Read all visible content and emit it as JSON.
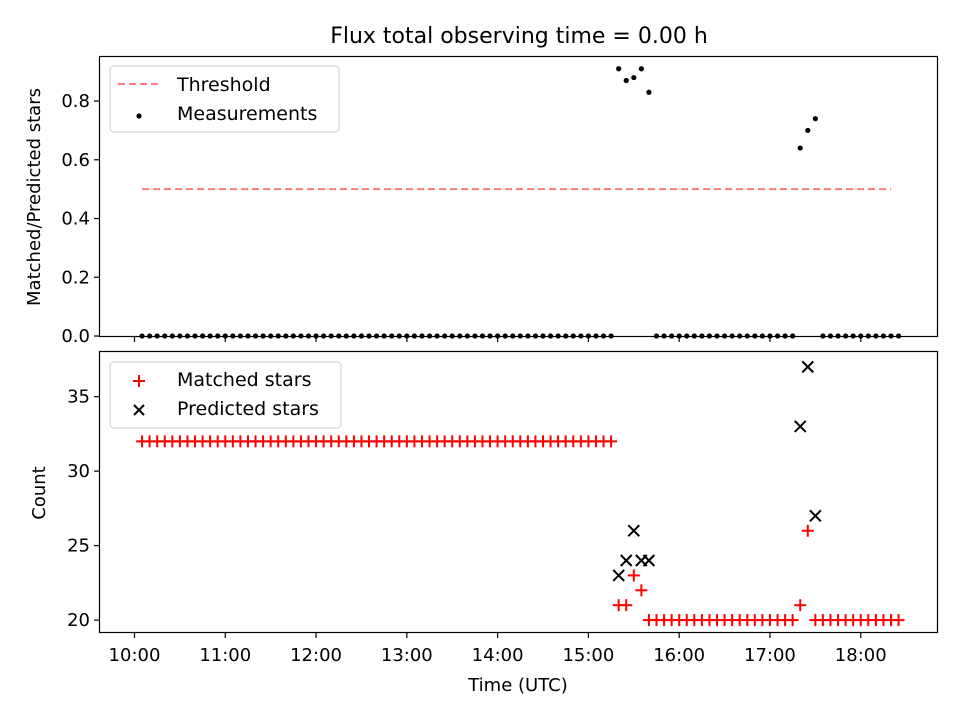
{
  "chart_data": [
    {
      "type": "scatter",
      "title": "Flux total observing time = 0.00 h",
      "ylabel": "Matched/Predicted stars",
      "ylim": [
        0.0,
        0.95
      ],
      "yticks": [
        "0.0",
        "0.2",
        "0.4",
        "0.6",
        "0.8"
      ],
      "legend_position": "top-left",
      "threshold": {
        "name": "Threshold",
        "value": 0.5,
        "x_range": [
          "10:05",
          "18:20"
        ],
        "color": "#ff7a7a"
      },
      "series": [
        {
          "name": "Measurements",
          "color": "#000000",
          "points": [
            {
              "t": "15:20",
              "v": 0.91
            },
            {
              "t": "15:25",
              "v": 0.87
            },
            {
              "t": "15:30",
              "v": 0.88
            },
            {
              "t": "15:35",
              "v": 0.91
            },
            {
              "t": "15:40",
              "v": 0.83
            },
            {
              "t": "17:20",
              "v": 0.64
            },
            {
              "t": "17:25",
              "v": 0.7
            },
            {
              "t": "17:30",
              "v": 0.74
            }
          ],
          "zero_points": {
            "from": "10:05",
            "to": "18:25",
            "step_minutes": 5,
            "value": 0.0,
            "excluded": [
              "15:20",
              "15:25",
              "15:30",
              "15:35",
              "15:40",
              "17:20",
              "17:25",
              "17:30"
            ]
          }
        }
      ]
    },
    {
      "type": "scatter",
      "ylabel": "Count",
      "xlabel": "Time (UTC)",
      "ylim": [
        19.2,
        38.0
      ],
      "yticks": [
        "20",
        "25",
        "30",
        "35"
      ],
      "xticks": [
        "10:00",
        "11:00",
        "12:00",
        "13:00",
        "14:00",
        "15:00",
        "16:00",
        "17:00",
        "18:00"
      ],
      "legend_position": "top-left",
      "series": [
        {
          "name": "Matched stars",
          "marker": "plus",
          "color": "#ff0000",
          "points": [
            {
              "t": "15:20",
              "v": 21
            },
            {
              "t": "15:25",
              "v": 21
            },
            {
              "t": "15:30",
              "v": 23
            },
            {
              "t": "15:35",
              "v": 22
            },
            {
              "t": "15:40",
              "v": 20
            },
            {
              "t": "17:20",
              "v": 21
            },
            {
              "t": "17:25",
              "v": 26
            },
            {
              "t": "17:30",
              "v": 20
            }
          ],
          "runs": [
            {
              "from": "10:05",
              "to": "15:15",
              "step_minutes": 5,
              "value": 32
            },
            {
              "from": "15:45",
              "to": "17:15",
              "step_minutes": 5,
              "value": 20
            },
            {
              "from": "17:35",
              "to": "18:25",
              "step_minutes": 5,
              "value": 20
            }
          ]
        },
        {
          "name": "Predicted stars",
          "marker": "x",
          "color": "#000000",
          "points": [
            {
              "t": "15:20",
              "v": 23
            },
            {
              "t": "15:25",
              "v": 24
            },
            {
              "t": "15:30",
              "v": 26
            },
            {
              "t": "15:35",
              "v": 24
            },
            {
              "t": "15:40",
              "v": 24
            },
            {
              "t": "17:20",
              "v": 33
            },
            {
              "t": "17:25",
              "v": 37
            },
            {
              "t": "17:30",
              "v": 27
            }
          ]
        }
      ]
    }
  ]
}
